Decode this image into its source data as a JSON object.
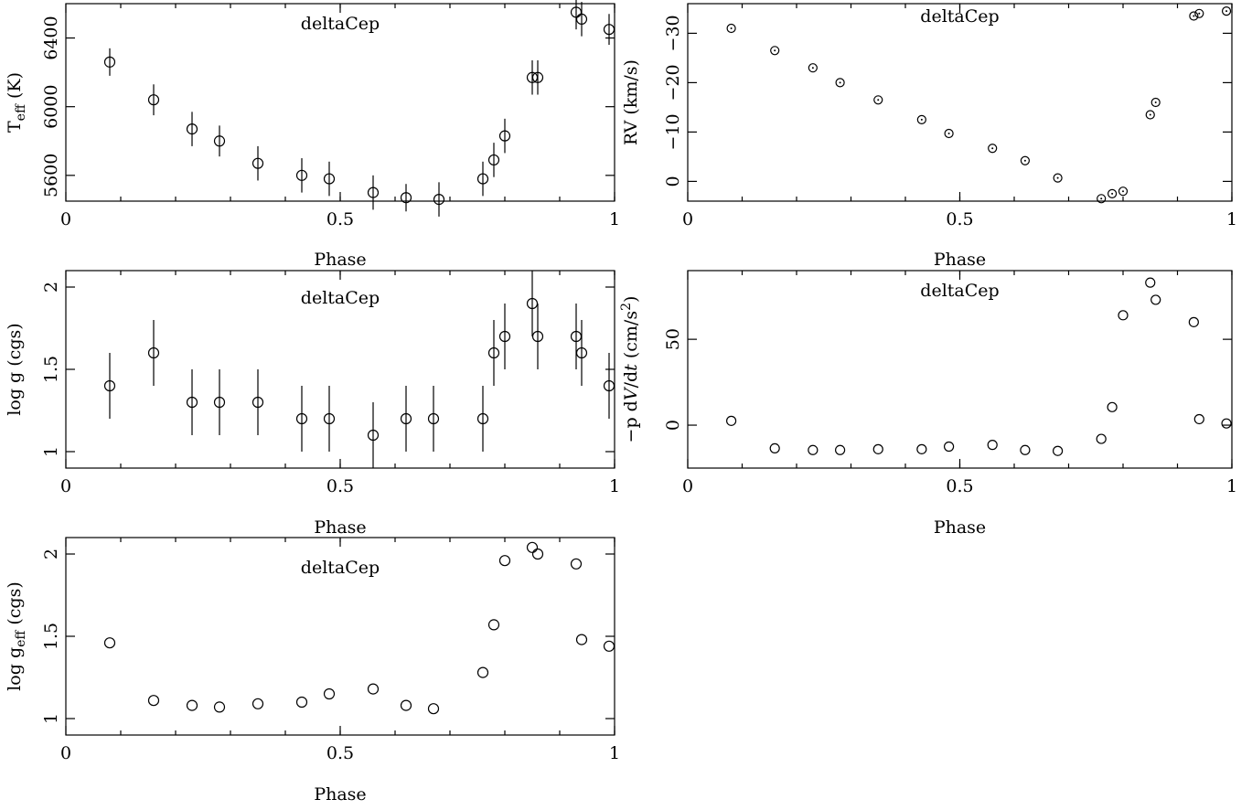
{
  "chart_data": [
    {
      "type": "scatter",
      "title": "deltaCep",
      "xlabel": "Phase",
      "ylabel_parts": [
        "T",
        "eff",
        " (K)"
      ],
      "xlim": [
        0,
        1
      ],
      "ylim": [
        5450,
        6600
      ],
      "xticks": [
        0,
        0.5,
        1
      ],
      "xtick_labels": [
        "0",
        "0.5",
        "1"
      ],
      "yticks": [
        5600,
        6000,
        6400
      ],
      "ytick_labels": [
        "5600",
        "6000",
        "6400"
      ],
      "points": [
        {
          "x": 0.08,
          "y": 6260,
          "err": 80
        },
        {
          "x": 0.16,
          "y": 6040,
          "err": 90
        },
        {
          "x": 0.23,
          "y": 5870,
          "err": 100
        },
        {
          "x": 0.28,
          "y": 5800,
          "err": 90
        },
        {
          "x": 0.35,
          "y": 5670,
          "err": 100
        },
        {
          "x": 0.43,
          "y": 5600,
          "err": 100
        },
        {
          "x": 0.48,
          "y": 5580,
          "err": 100
        },
        {
          "x": 0.56,
          "y": 5500,
          "err": 100
        },
        {
          "x": 0.62,
          "y": 5470,
          "err": 80
        },
        {
          "x": 0.68,
          "y": 5460,
          "err": 100
        },
        {
          "x": 0.76,
          "y": 5580,
          "err": 100
        },
        {
          "x": 0.78,
          "y": 5690,
          "err": 100
        },
        {
          "x": 0.8,
          "y": 5830,
          "err": 100
        },
        {
          "x": 0.85,
          "y": 6170,
          "err": 100
        },
        {
          "x": 0.86,
          "y": 6170,
          "err": 100
        },
        {
          "x": 0.93,
          "y": 6550,
          "err": 100
        },
        {
          "x": 0.94,
          "y": 6510,
          "err": 100
        },
        {
          "x": 0.99,
          "y": 6450,
          "err": 90
        }
      ]
    },
    {
      "type": "scatter",
      "title": "deltaCep",
      "xlabel": "Phase",
      "ylabel": "RV (km/s)",
      "xlim": [
        0,
        1
      ],
      "ylim": [
        4,
        -36
      ],
      "xticks": [
        0,
        0.5,
        1
      ],
      "xtick_labels": [
        "0",
        "0.5",
        "1"
      ],
      "yticks": [
        0,
        -10,
        -20,
        -30
      ],
      "ytick_labels": [
        "0",
        "−10",
        "−20",
        "−30"
      ],
      "points": [
        {
          "x": 0.08,
          "y": -31
        },
        {
          "x": 0.16,
          "y": -26.5
        },
        {
          "x": 0.23,
          "y": -23
        },
        {
          "x": 0.28,
          "y": -20
        },
        {
          "x": 0.35,
          "y": -16.5
        },
        {
          "x": 0.43,
          "y": -12.5
        },
        {
          "x": 0.48,
          "y": -9.7
        },
        {
          "x": 0.56,
          "y": -6.7
        },
        {
          "x": 0.62,
          "y": -4.2
        },
        {
          "x": 0.68,
          "y": -0.7
        },
        {
          "x": 0.76,
          "y": 3.5
        },
        {
          "x": 0.78,
          "y": 2.5
        },
        {
          "x": 0.8,
          "y": 2.0
        },
        {
          "x": 0.85,
          "y": -13.5
        },
        {
          "x": 0.86,
          "y": -16
        },
        {
          "x": 0.93,
          "y": -33.5
        },
        {
          "x": 0.94,
          "y": -34
        },
        {
          "x": 0.99,
          "y": -34.5
        }
      ]
    },
    {
      "type": "scatter",
      "title": "deltaCep",
      "xlabel": "Phase",
      "ylabel": "log g (cgs)",
      "xlim": [
        0,
        1
      ],
      "ylim": [
        0.9,
        2.1
      ],
      "xticks": [
        0,
        0.5,
        1
      ],
      "xtick_labels": [
        "0",
        "0.5",
        "1"
      ],
      "yticks": [
        1,
        1.5,
        2
      ],
      "ytick_labels": [
        "1",
        "1.5",
        "2"
      ],
      "points": [
        {
          "x": 0.08,
          "y": 1.4,
          "err": 0.2
        },
        {
          "x": 0.16,
          "y": 1.6,
          "err": 0.2
        },
        {
          "x": 0.23,
          "y": 1.3,
          "err": 0.2
        },
        {
          "x": 0.28,
          "y": 1.3,
          "err": 0.2
        },
        {
          "x": 0.35,
          "y": 1.3,
          "err": 0.2
        },
        {
          "x": 0.43,
          "y": 1.2,
          "err": 0.2
        },
        {
          "x": 0.48,
          "y": 1.2,
          "err": 0.2
        },
        {
          "x": 0.56,
          "y": 1.1,
          "err": 0.2
        },
        {
          "x": 0.62,
          "y": 1.2,
          "err": 0.2
        },
        {
          "x": 0.67,
          "y": 1.2,
          "err": 0.2
        },
        {
          "x": 0.76,
          "y": 1.2,
          "err": 0.2
        },
        {
          "x": 0.78,
          "y": 1.6,
          "err": 0.2
        },
        {
          "x": 0.8,
          "y": 1.7,
          "err": 0.2
        },
        {
          "x": 0.85,
          "y": 1.9,
          "err": 0.2
        },
        {
          "x": 0.86,
          "y": 1.7,
          "err": 0.2
        },
        {
          "x": 0.93,
          "y": 1.7,
          "err": 0.2
        },
        {
          "x": 0.94,
          "y": 1.6,
          "err": 0.2
        },
        {
          "x": 0.99,
          "y": 1.4,
          "err": 0.2
        }
      ]
    },
    {
      "type": "scatter",
      "title": "deltaCep",
      "xlabel": "Phase",
      "ylabel_parts": [
        "−p d",
        "V",
        "/d",
        "t",
        " (cm/s",
        "2",
        ")"
      ],
      "xlim": [
        0,
        1
      ],
      "ylim": [
        -25,
        90
      ],
      "xticks": [
        0,
        0.5,
        1
      ],
      "xtick_labels": [
        "0",
        "0.5",
        "1"
      ],
      "yticks": [
        0,
        50
      ],
      "ytick_labels": [
        "0",
        "50"
      ],
      "points": [
        {
          "x": 0.08,
          "y": 2.5
        },
        {
          "x": 0.16,
          "y": -13.5
        },
        {
          "x": 0.23,
          "y": -14.5
        },
        {
          "x": 0.28,
          "y": -14.5
        },
        {
          "x": 0.35,
          "y": -14
        },
        {
          "x": 0.43,
          "y": -14
        },
        {
          "x": 0.48,
          "y": -12.5
        },
        {
          "x": 0.56,
          "y": -11.5
        },
        {
          "x": 0.62,
          "y": -14.5
        },
        {
          "x": 0.68,
          "y": -15
        },
        {
          "x": 0.76,
          "y": -8
        },
        {
          "x": 0.78,
          "y": 10.5
        },
        {
          "x": 0.8,
          "y": 64
        },
        {
          "x": 0.85,
          "y": 83
        },
        {
          "x": 0.86,
          "y": 73
        },
        {
          "x": 0.93,
          "y": 60
        },
        {
          "x": 0.94,
          "y": 3.5
        },
        {
          "x": 0.99,
          "y": 1
        }
      ]
    },
    {
      "type": "scatter",
      "title": "deltaCep",
      "xlabel": "Phase",
      "ylabel_parts": [
        "log g",
        "eff",
        " (cgs)"
      ],
      "xlim": [
        0,
        1
      ],
      "ylim": [
        0.9,
        2.1
      ],
      "xticks": [
        0,
        0.5,
        1
      ],
      "xtick_labels": [
        "0",
        "0.5",
        "1"
      ],
      "yticks": [
        1,
        1.5,
        2
      ],
      "ytick_labels": [
        "1",
        "1.5",
        "2"
      ],
      "points": [
        {
          "x": 0.08,
          "y": 1.46
        },
        {
          "x": 0.16,
          "y": 1.11
        },
        {
          "x": 0.23,
          "y": 1.08
        },
        {
          "x": 0.28,
          "y": 1.07
        },
        {
          "x": 0.35,
          "y": 1.09
        },
        {
          "x": 0.43,
          "y": 1.1
        },
        {
          "x": 0.48,
          "y": 1.15
        },
        {
          "x": 0.56,
          "y": 1.18
        },
        {
          "x": 0.62,
          "y": 1.08
        },
        {
          "x": 0.67,
          "y": 1.06
        },
        {
          "x": 0.76,
          "y": 1.28
        },
        {
          "x": 0.78,
          "y": 1.57
        },
        {
          "x": 0.8,
          "y": 1.96
        },
        {
          "x": 0.85,
          "y": 2.04
        },
        {
          "x": 0.86,
          "y": 2.0
        },
        {
          "x": 0.93,
          "y": 1.94
        },
        {
          "x": 0.94,
          "y": 1.48
        },
        {
          "x": 0.99,
          "y": 1.44
        }
      ]
    }
  ]
}
